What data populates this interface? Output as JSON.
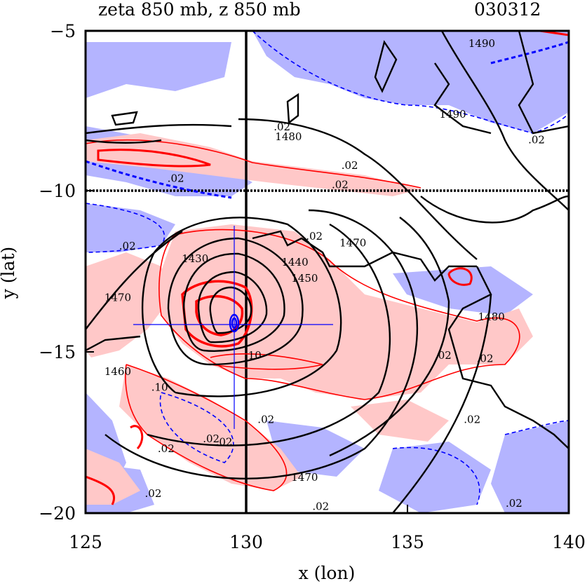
{
  "chart_data": {
    "type": "contour",
    "title": "zeta 850 mb, z 850 mb",
    "date": "030312",
    "xlabel": "x (lon)",
    "ylabel": "y (lat)",
    "xlim": [
      125,
      140
    ],
    "ylim": [
      -20,
      -5
    ],
    "xticks": [
      "125",
      "130",
      "135",
      "140"
    ],
    "yticks": [
      "−5",
      "−10",
      "−15",
      "−20"
    ],
    "reference_lines": {
      "lon": 130,
      "lat": -10
    },
    "storm_center": {
      "lon": 129.5,
      "lat": -14.1
    },
    "colors": {
      "positive_zeta": "#ff0000",
      "positive_fill": "#ffc8c8",
      "negative_zeta": "#0000ff",
      "negative_fill": "#b4b4ff",
      "height": "#000000"
    },
    "contour_labels": [
      {
        "text": "1490",
        "lon": 137.3,
        "lat": -5.5
      },
      {
        "text": "1490",
        "lon": 136.4,
        "lat": -7.7
      },
      {
        "text": ".02",
        "lon": 131.1,
        "lat": -8.1
      },
      {
        "text": "1480",
        "lon": 131.3,
        "lat": -8.4
      },
      {
        "text": ".02",
        "lon": 139.0,
        "lat": -8.5
      },
      {
        "text": ".02",
        "lon": 133.2,
        "lat": -9.3
      },
      {
        "text": ".02",
        "lon": 127.8,
        "lat": -9.7
      },
      {
        "text": ".02",
        "lon": 132.9,
        "lat": -9.9
      },
      {
        "text": ".02",
        "lon": 126.3,
        "lat": -11.8
      },
      {
        "text": "1430",
        "lon": 128.4,
        "lat": -12.2
      },
      {
        "text": "1440",
        "lon": 131.5,
        "lat": -12.3
      },
      {
        "text": "1450",
        "lon": 131.8,
        "lat": -12.8
      },
      {
        "text": ".02",
        "lon": 132.1,
        "lat": -11.5
      },
      {
        "text": "1470",
        "lon": 133.3,
        "lat": -11.7
      },
      {
        "text": "1470",
        "lon": 126.0,
        "lat": -13.4
      },
      {
        "text": "1480",
        "lon": 137.6,
        "lat": -14.0
      },
      {
        "text": ".10",
        "lon": 130.2,
        "lat": -15.2
      },
      {
        "text": ".02",
        "lon": 136.1,
        "lat": -15.2
      },
      {
        "text": ".02",
        "lon": 137.4,
        "lat": -15.3
      },
      {
        "text": "1460",
        "lon": 126.0,
        "lat": -15.7
      },
      {
        "text": ".10",
        "lon": 127.3,
        "lat": -16.2
      },
      {
        "text": ".02",
        "lon": 127.5,
        "lat": -18.1
      },
      {
        "text": ".02",
        "lon": 130.6,
        "lat": -17.2
      },
      {
        "text": ".02",
        "lon": 137.0,
        "lat": -17.2
      },
      {
        "text": ".02",
        "lon": 128.9,
        "lat": -17.8
      },
      {
        "text": ".02",
        "lon": 129.3,
        "lat": -17.9
      },
      {
        "text": "1470",
        "lon": 131.8,
        "lat": -19.0
      },
      {
        "text": ".02",
        "lon": 127.1,
        "lat": -19.5
      },
      {
        "text": ".02",
        "lon": 138.3,
        "lat": -19.8
      },
      {
        "text": ".02",
        "lon": 132.3,
        "lat": -19.9
      }
    ],
    "height_contour_levels": [
      1430,
      1440,
      1450,
      1460,
      1470,
      1480,
      1490
    ],
    "zeta_contour_levels": [
      0.02,
      0.1
    ]
  }
}
